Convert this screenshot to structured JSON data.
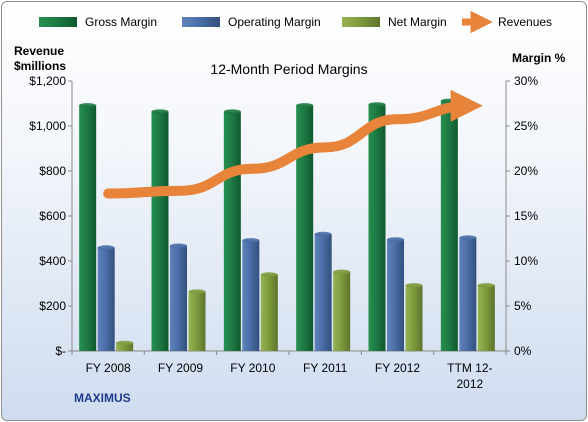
{
  "chart_data": {
    "type": "bar",
    "title": "12-Month Period Margins",
    "categories": [
      [
        "FY 2008"
      ],
      [
        "FY 2009"
      ],
      [
        "FY 2010"
      ],
      [
        "FY 2011"
      ],
      [
        "FY 2012"
      ],
      [
        "TTM 12-",
        "2012"
      ]
    ],
    "series": [
      {
        "name": "Gross Margin",
        "axis": "right",
        "color": "#1e7a44",
        "values": [
          27.3,
          26.6,
          26.6,
          27.3,
          27.4,
          27.8
        ]
      },
      {
        "name": "Operating Margin",
        "axis": "right",
        "color": "#4a6fa8",
        "values": [
          11.5,
          11.7,
          12.3,
          13.0,
          12.4,
          12.6
        ]
      },
      {
        "name": "Net Margin",
        "axis": "right",
        "color": "#7f9c3e",
        "values": [
          0.9,
          6.6,
          8.5,
          8.8,
          7.3,
          7.3
        ]
      },
      {
        "name": "Revenues",
        "axis": "left",
        "type": "line",
        "color": "#e8833a",
        "values": [
          700,
          712,
          810,
          905,
          1030,
          1090
        ]
      }
    ],
    "y_left": {
      "label_line1": "Revenue",
      "label_line2": "$millions",
      "min": 0,
      "max": 1200,
      "ticks": [
        0,
        200,
        400,
        600,
        800,
        1000,
        1200
      ],
      "tick_labels": [
        "$-",
        "$200",
        "$400",
        "$600",
        "$800",
        "$1,000",
        "$1,200"
      ]
    },
    "y_right": {
      "label": "Margin %",
      "min": 0,
      "max": 30,
      "ticks": [
        0,
        5,
        10,
        15,
        20,
        25,
        30
      ],
      "tick_labels": [
        "0%",
        "5%",
        "10%",
        "15%",
        "20%",
        "25%",
        "30%"
      ]
    },
    "legend_position": "top",
    "grid": false,
    "footer": "MAXIMUS"
  }
}
